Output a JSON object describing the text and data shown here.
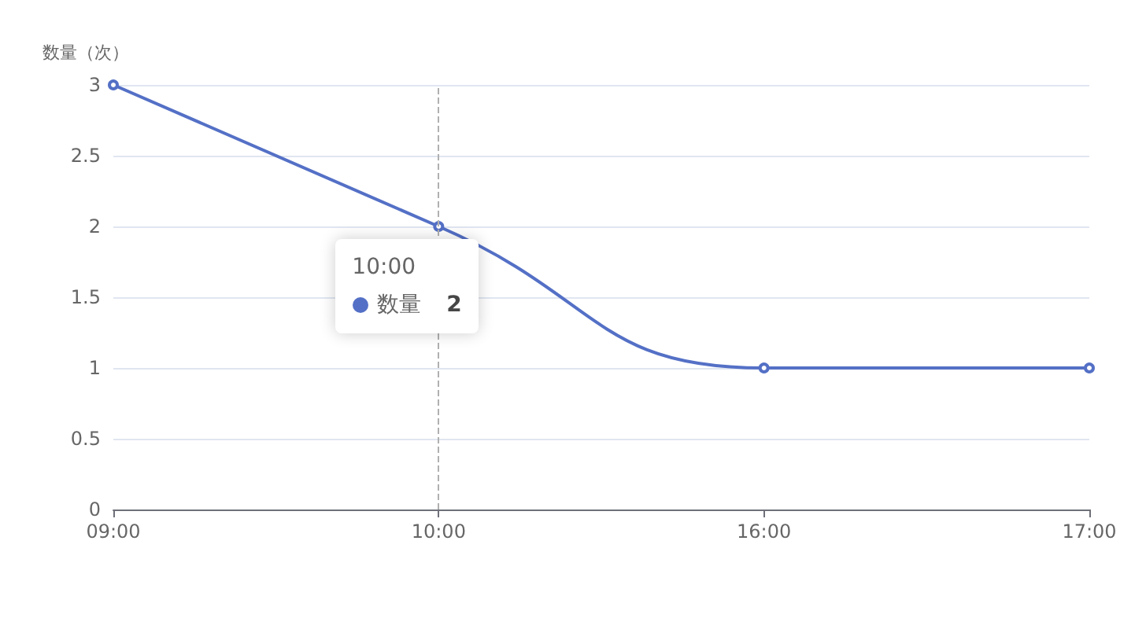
{
  "chart_data": {
    "type": "line",
    "ylabel": "数量（次）",
    "categories": [
      "09:00",
      "10:00",
      "16:00",
      "17:00"
    ],
    "series": [
      {
        "name": "数量",
        "color": "#5470c6",
        "values": [
          3,
          2,
          1,
          1
        ],
        "value_labels": [
          null,
          "2",
          null,
          null
        ]
      }
    ],
    "ylim": [
      0,
      3
    ],
    "yticks": [
      0,
      0.5,
      1,
      1.5,
      2,
      2.5,
      3
    ],
    "grid": "y",
    "marker": "circle",
    "legend": "left",
    "ref_lines": [
      {
        "axis": "x",
        "value": "10:00",
        "color": "#b0b0b0",
        "line_style": "dashed"
      }
    ]
  }
}
